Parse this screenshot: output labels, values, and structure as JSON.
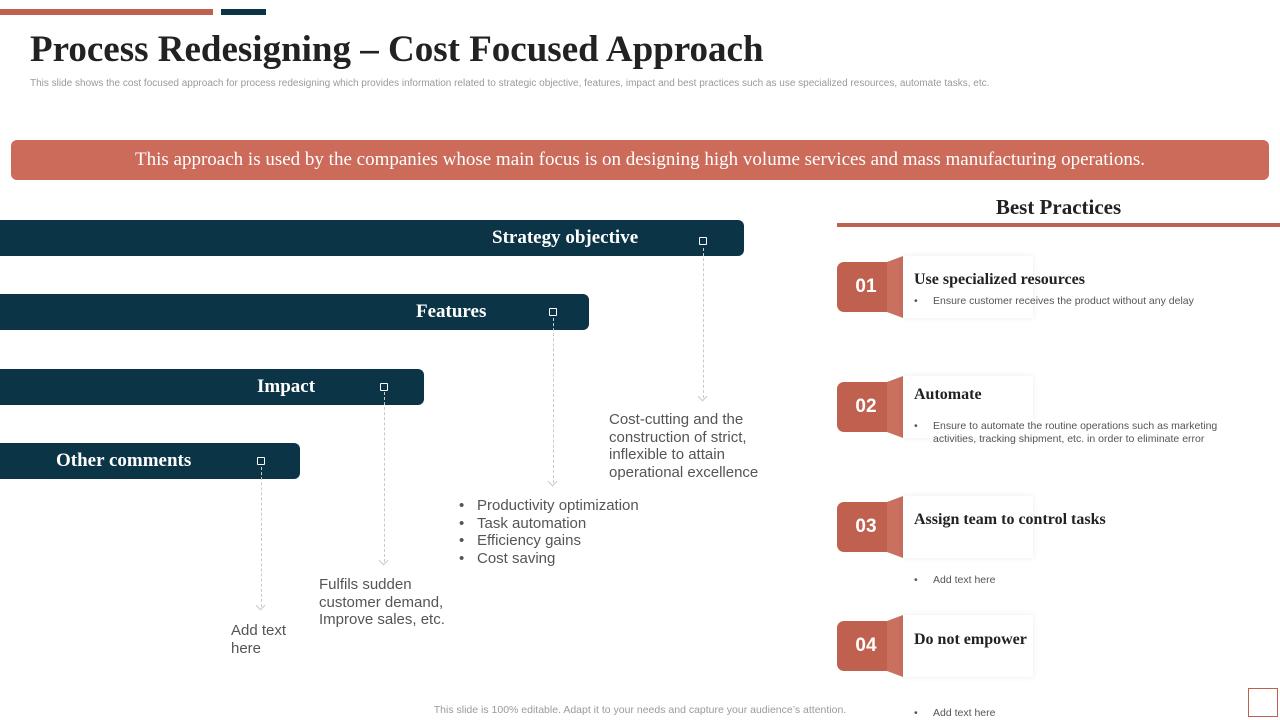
{
  "header": {
    "title": "Process Redesigning – Cost Focused Approach",
    "subtitle": "This slide shows the cost focused approach for process redesigning which provides information related to strategic objective, features, impact and best practices such as use specialized resources, automate tasks, etc."
  },
  "banner": {
    "text": "This approach is used by the companies whose main focus is on designing high volume services and mass manufacturing operations."
  },
  "bars": [
    {
      "label": "Strategy objective"
    },
    {
      "label": "Features"
    },
    {
      "label": "Impact"
    },
    {
      "label": "Other comments"
    }
  ],
  "notes": {
    "strategy": "Cost-cutting and the construction of strict, inflexible to attain operational excellence",
    "features": [
      "Productivity optimization",
      "Task automation",
      "Efficiency gains",
      "Cost saving"
    ],
    "impact": "Fulfils sudden customer demand, Improve sales, etc.",
    "other": "Add text here"
  },
  "best_practices": {
    "heading": "Best  Practices",
    "items": [
      {
        "num": "01",
        "title": "Use specialized resources",
        "desc": "Ensure customer receives the product without any delay"
      },
      {
        "num": "02",
        "title": "Automate",
        "desc": "Ensure to automate the routine operations such as marketing activities, tracking shipment, etc. in order to eliminate error"
      },
      {
        "num": "03",
        "title": "Assign team to control tasks",
        "desc": "Add text here"
      },
      {
        "num": "04",
        "title": "Do not empower",
        "desc": "Add text here"
      }
    ]
  },
  "footer": {
    "text": "This slide is 100% editable. Adapt it to your needs and capture your audience’s attention."
  },
  "colors": {
    "accent": "#c0614f",
    "navy": "#0c3447",
    "banner": "#cc6b5a"
  }
}
